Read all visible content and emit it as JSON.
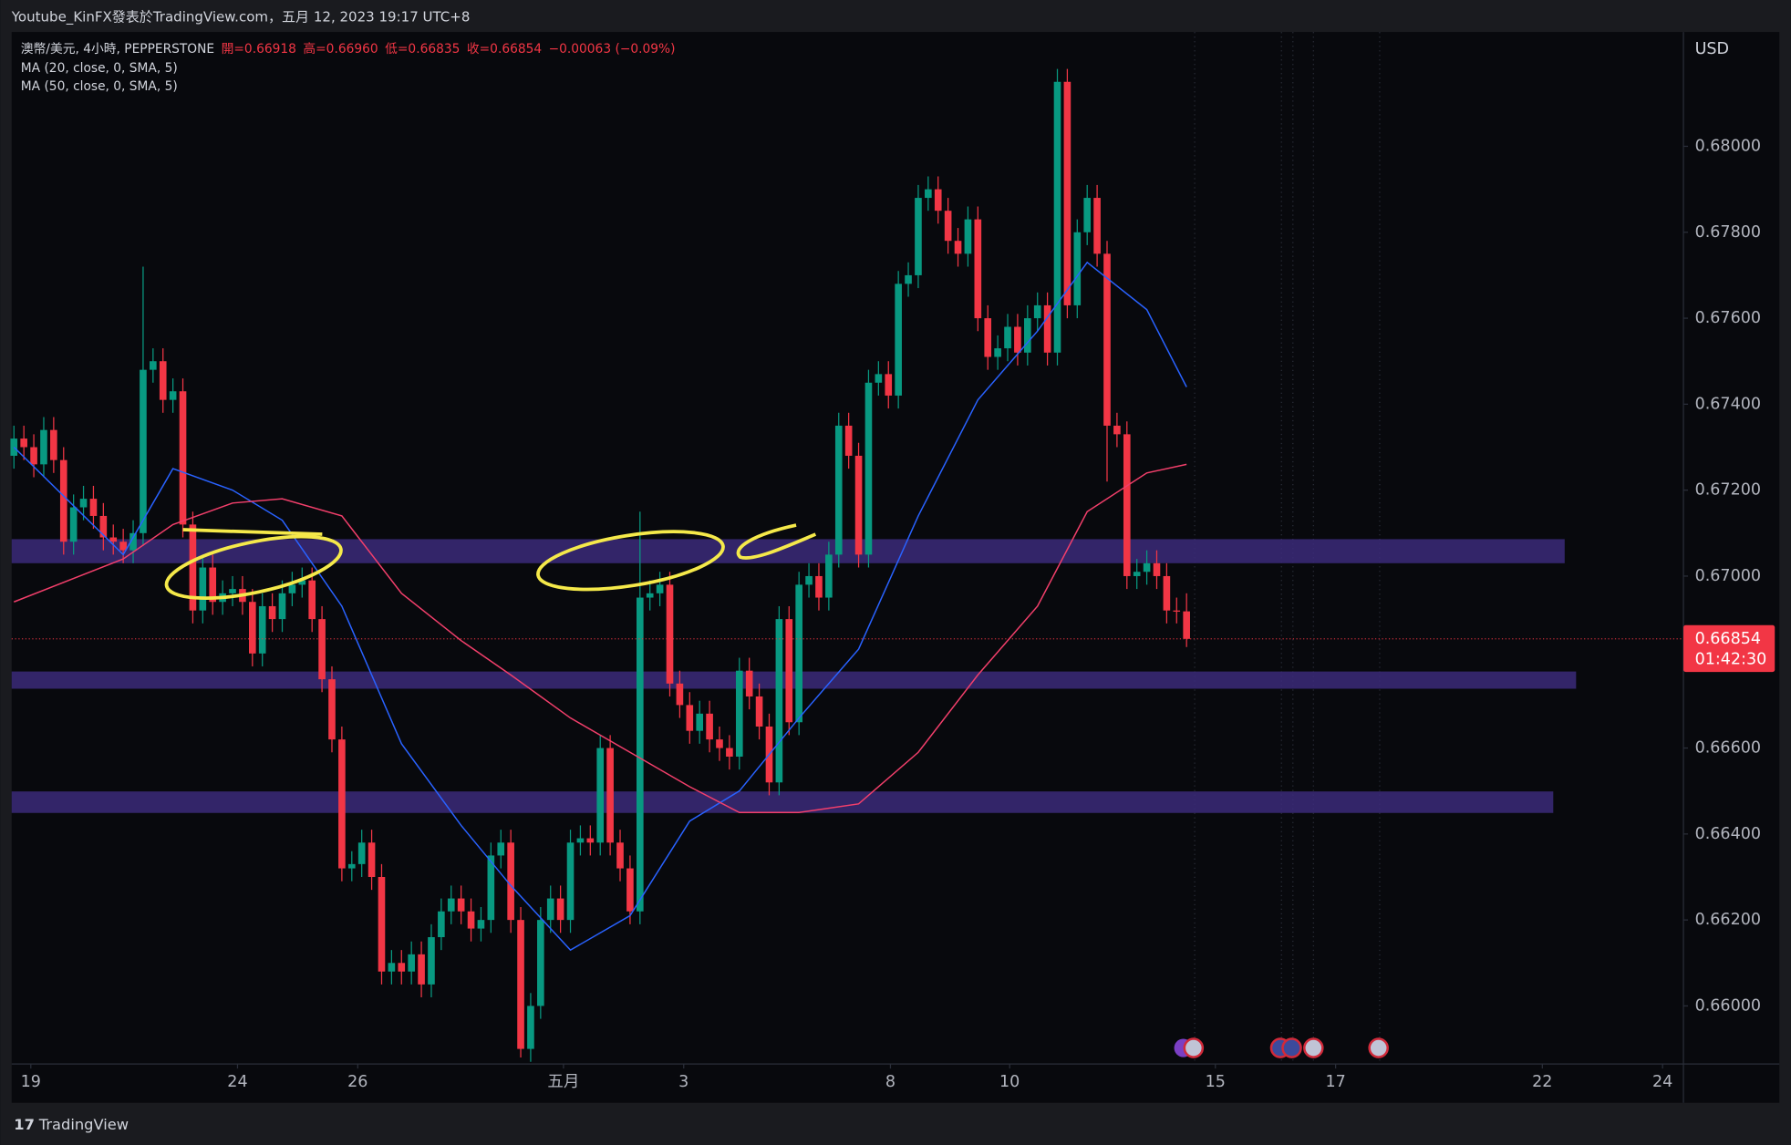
{
  "chart_data": {
    "type": "candlestick",
    "top_bar": "Youtube_KinFX發表於TradingView.com，五月 12, 2023 19:17 UTC+8",
    "symbol": "澳幣/美元, 4小時, PEPPERSTONE",
    "ohlc_labels": [
      "開=0.66918",
      "高=0.66960",
      "低=0.66835",
      "收=0.66854",
      "−0.00063 (−0.09%)"
    ],
    "currency": "USD",
    "countdown": "01:42:30",
    "footer": "TradingView",
    "up_color": "#089981",
    "down_color": "#f23645",
    "open": [
      0.6728,
      0.6732,
      0.673,
      0.6726,
      0.6734,
      0.6727,
      0.6708,
      0.6716,
      0.6718,
      0.6714,
      0.6709,
      0.6708,
      0.6706,
      0.671,
      0.6748,
      0.675,
      0.6741,
      0.6743,
      0.6712,
      0.6692,
      0.6702,
      0.6694,
      0.6696,
      0.6697,
      0.6694,
      0.6682,
      0.6693,
      0.669,
      0.6696,
      0.6698,
      0.6699,
      0.669,
      0.6676,
      0.6662,
      0.6632,
      0.6633,
      0.6638,
      0.663,
      0.6608,
      0.661,
      0.6608,
      0.6612,
      0.6605,
      0.6616,
      0.6622,
      0.6625,
      0.6622,
      0.6618,
      0.662,
      0.6635,
      0.6638,
      0.662,
      0.659,
      0.66,
      0.662,
      0.6625,
      0.662,
      0.6638,
      0.6639,
      0.6638,
      0.666,
      0.6638,
      0.6632,
      0.6622,
      0.6695,
      0.6696,
      0.6698,
      0.6675,
      0.667,
      0.6664,
      0.6668,
      0.6662,
      0.666,
      0.6658,
      0.6678,
      0.6672,
      0.6665,
      0.6652,
      0.669,
      0.6666,
      0.6698,
      0.67,
      0.6695,
      0.6705,
      0.6735,
      0.6728,
      0.6705,
      0.6745,
      0.6747,
      0.6742,
      0.6768,
      0.677,
      0.6788,
      0.679,
      0.6785,
      0.6778,
      0.6775,
      0.6783,
      0.676,
      0.6751,
      0.6753,
      0.6758,
      0.6752,
      0.676,
      0.6763,
      0.6752,
      0.6815,
      0.6763,
      0.678,
      0.6788,
      0.6775,
      0.6735,
      0.6733,
      0.67,
      0.6701,
      0.6703,
      0.67,
      0.6692,
      0.66918
    ],
    "high": [
      0.6735,
      0.6735,
      0.6733,
      0.6737,
      0.6737,
      0.673,
      0.6719,
      0.6721,
      0.6721,
      0.6717,
      0.6712,
      0.6711,
      0.6713,
      0.6772,
      0.6753,
      0.6753,
      0.6746,
      0.6746,
      0.6715,
      0.6705,
      0.6705,
      0.6699,
      0.67,
      0.67,
      0.6697,
      0.6696,
      0.6696,
      0.6699,
      0.6701,
      0.6702,
      0.6702,
      0.6693,
      0.6679,
      0.6665,
      0.6636,
      0.6641,
      0.6641,
      0.6633,
      0.6613,
      0.6613,
      0.6615,
      0.6615,
      0.6619,
      0.6625,
      0.6628,
      0.6628,
      0.6625,
      0.6623,
      0.6638,
      0.6641,
      0.6641,
      0.6623,
      0.6603,
      0.6623,
      0.6628,
      0.6628,
      0.6641,
      0.6642,
      0.6642,
      0.6663,
      0.6663,
      0.6641,
      0.6635,
      0.6715,
      0.6699,
      0.6701,
      0.6701,
      0.6678,
      0.6673,
      0.6671,
      0.6671,
      0.6665,
      0.6663,
      0.6681,
      0.6681,
      0.6675,
      0.6668,
      0.6693,
      0.6693,
      0.6701,
      0.6703,
      0.6703,
      0.6708,
      0.6738,
      0.6738,
      0.6731,
      0.6748,
      0.675,
      0.675,
      0.6771,
      0.6773,
      0.6791,
      0.6793,
      0.6793,
      0.6788,
      0.6781,
      0.6786,
      0.6786,
      0.6763,
      0.6756,
      0.6761,
      0.6761,
      0.6763,
      0.6766,
      0.6766,
      0.6818,
      0.6818,
      0.6783,
      0.6791,
      0.6791,
      0.6778,
      0.6738,
      0.6736,
      0.6704,
      0.6706,
      0.6706,
      0.6703,
      0.6695,
      0.6696
    ],
    "low": [
      0.6725,
      0.6727,
      0.6723,
      0.6723,
      0.6724,
      0.6705,
      0.6705,
      0.6713,
      0.6711,
      0.6706,
      0.6705,
      0.6703,
      0.6703,
      0.6707,
      0.6745,
      0.6738,
      0.6738,
      0.6709,
      0.6689,
      0.6689,
      0.6691,
      0.6691,
      0.6693,
      0.6691,
      0.6679,
      0.6679,
      0.6687,
      0.6687,
      0.6693,
      0.6695,
      0.6687,
      0.6673,
      0.6659,
      0.6629,
      0.6629,
      0.663,
      0.6627,
      0.6605,
      0.6605,
      0.6605,
      0.6605,
      0.6602,
      0.6602,
      0.6613,
      0.6619,
      0.6619,
      0.6615,
      0.6615,
      0.6617,
      0.6632,
      0.6617,
      0.6588,
      0.6587,
      0.6597,
      0.6617,
      0.6617,
      0.6617,
      0.6635,
      0.6635,
      0.6635,
      0.6635,
      0.6629,
      0.6619,
      0.6619,
      0.6692,
      0.6693,
      0.6672,
      0.6667,
      0.6661,
      0.6661,
      0.6659,
      0.6657,
      0.6655,
      0.6655,
      0.6669,
      0.6662,
      0.6649,
      0.6649,
      0.6663,
      0.6663,
      0.6695,
      0.6692,
      0.6692,
      0.6702,
      0.6725,
      0.6702,
      0.6702,
      0.6742,
      0.6739,
      0.6739,
      0.6765,
      0.6767,
      0.6785,
      0.6782,
      0.6775,
      0.6772,
      0.6772,
      0.6757,
      0.6748,
      0.6748,
      0.675,
      0.6749,
      0.6749,
      0.6757,
      0.6749,
      0.6749,
      0.676,
      0.676,
      0.6777,
      0.6772,
      0.6722,
      0.673,
      0.6697,
      0.6697,
      0.6698,
      0.6697,
      0.6689,
      0.6689,
      0.66835
    ],
    "close": [
      0.6732,
      0.673,
      0.6726,
      0.6734,
      0.6727,
      0.6708,
      0.6716,
      0.6718,
      0.6714,
      0.6709,
      0.6708,
      0.6706,
      0.671,
      0.6748,
      0.675,
      0.6741,
      0.6743,
      0.6712,
      0.6692,
      0.6702,
      0.6694,
      0.6696,
      0.6697,
      0.6694,
      0.6682,
      0.6693,
      0.669,
      0.6696,
      0.6698,
      0.6699,
      0.669,
      0.6676,
      0.6662,
      0.6632,
      0.6633,
      0.6638,
      0.663,
      0.6608,
      0.661,
      0.6608,
      0.6612,
      0.6605,
      0.6616,
      0.6622,
      0.6625,
      0.6622,
      0.6618,
      0.662,
      0.6635,
      0.6638,
      0.662,
      0.659,
      0.66,
      0.662,
      0.6625,
      0.662,
      0.6638,
      0.6639,
      0.6638,
      0.666,
      0.6638,
      0.6632,
      0.6622,
      0.6695,
      0.6696,
      0.6698,
      0.6675,
      0.667,
      0.6664,
      0.6668,
      0.6662,
      0.666,
      0.6658,
      0.6678,
      0.6672,
      0.6665,
      0.6652,
      0.669,
      0.6666,
      0.6698,
      0.67,
      0.6695,
      0.6705,
      0.6735,
      0.6728,
      0.6705,
      0.6745,
      0.6747,
      0.6742,
      0.6768,
      0.677,
      0.6788,
      0.679,
      0.6785,
      0.6778,
      0.6775,
      0.6783,
      0.676,
      0.6751,
      0.6753,
      0.6758,
      0.6752,
      0.676,
      0.6763,
      0.6752,
      0.6815,
      0.6763,
      0.678,
      0.6788,
      0.6775,
      0.6735,
      0.6733,
      0.67,
      0.6701,
      0.6703,
      0.67,
      0.6692,
      0.66918,
      0.66854
    ],
    "ma_lines": [
      {
        "name": "MA (20, close, 0, SMA, 5)",
        "color": "#2962ff",
        "x": [
          0,
          11,
          16,
          22,
          27,
          33,
          39,
          45,
          50,
          56,
          62,
          68,
          73,
          79,
          85,
          91,
          97,
          103,
          108,
          114,
          118
        ],
        "values": [
          0.673,
          0.6705,
          0.6725,
          0.672,
          0.6713,
          0.6693,
          0.6661,
          0.6642,
          0.6628,
          0.6613,
          0.6621,
          0.6643,
          0.665,
          0.6667,
          0.6683,
          0.6714,
          0.6741,
          0.6757,
          0.6773,
          0.6762,
          0.6744
        ]
      },
      {
        "name": "MA (50, close, 0, SMA, 5)",
        "color": "#f23f6b",
        "x": [
          0,
          11,
          16,
          22,
          27,
          33,
          39,
          45,
          50,
          56,
          62,
          68,
          73,
          79,
          85,
          91,
          97,
          103,
          108,
          114,
          118
        ],
        "values": [
          0.6694,
          0.6704,
          0.6712,
          0.6717,
          0.6718,
          0.6714,
          0.6696,
          0.6685,
          0.6677,
          0.6667,
          0.6659,
          0.6651,
          0.6645,
          0.6645,
          0.6647,
          0.6659,
          0.6677,
          0.6693,
          0.6715,
          0.6724,
          0.6726
        ]
      }
    ],
    "zones": [
      {
        "top": 0.67086,
        "bottom": 0.6703
      },
      {
        "top": 0.66778,
        "bottom": 0.66738
      },
      {
        "top": 0.66499,
        "bottom": 0.66449
      }
    ],
    "zone_color": "#3b2a7a",
    "xlim": [
      -0.23,
      168
    ],
    "xticks": [
      {
        "value": 1.7,
        "label": "19"
      },
      {
        "value": 22.5,
        "label": "24"
      },
      {
        "value": 34.6,
        "label": "26"
      },
      {
        "value": 55.3,
        "label": "五月"
      },
      {
        "value": 67.4,
        "label": "3"
      },
      {
        "value": 88.2,
        "label": "8"
      },
      {
        "value": 100.2,
        "label": "10"
      },
      {
        "value": 120.9,
        "label": "15"
      },
      {
        "value": 133,
        "label": "17"
      },
      {
        "value": 153.8,
        "label": "22"
      },
      {
        "value": 165.9,
        "label": "24"
      }
    ],
    "ylim": [
      0.65865,
      0.68266
    ],
    "yticks": [
      {
        "value": 0.66,
        "label": "0.66000"
      },
      {
        "value": 0.662,
        "label": "0.66200"
      },
      {
        "value": 0.664,
        "label": "0.66400"
      },
      {
        "value": 0.666,
        "label": "0.66600"
      },
      {
        "value": 0.668,
        "label": "0.66800"
      },
      {
        "value": 0.67,
        "label": "0.67000"
      },
      {
        "value": 0.672,
        "label": "0.67200"
      },
      {
        "value": 0.674,
        "label": "0.67400"
      },
      {
        "value": 0.676,
        "label": "0.67600"
      },
      {
        "value": 0.678,
        "label": "0.67800"
      },
      {
        "value": 0.68,
        "label": "0.68000"
      }
    ]
  }
}
